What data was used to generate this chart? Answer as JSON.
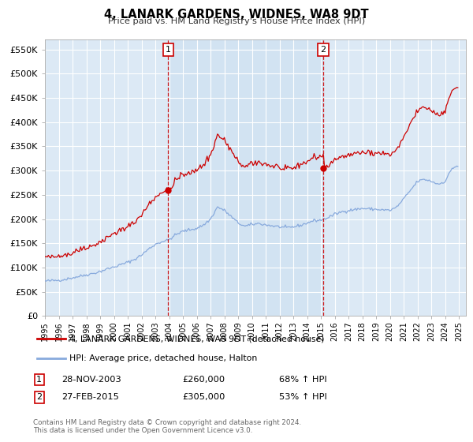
{
  "title": "4, LANARK GARDENS, WIDNES, WA8 9DT",
  "subtitle": "Price paid vs. HM Land Registry's House Price Index (HPI)",
  "xlim": [
    1995.0,
    2025.5
  ],
  "ylim": [
    0,
    570000
  ],
  "yticks": [
    0,
    50000,
    100000,
    150000,
    200000,
    250000,
    300000,
    350000,
    400000,
    450000,
    500000,
    550000
  ],
  "ytick_labels": [
    "£0",
    "£50K",
    "£100K",
    "£150K",
    "£200K",
    "£250K",
    "£300K",
    "£350K",
    "£400K",
    "£450K",
    "£500K",
    "£550K"
  ],
  "background_color": "#ffffff",
  "plot_bg_color": "#dce9f5",
  "plot_bg_between": "#cce0f0",
  "grid_color": "#ffffff",
  "t1_year": 2003.917,
  "t1_price": 260000,
  "t1_label": "1",
  "t1_date": "28-NOV-2003",
  "t1_pct": "68% ↑ HPI",
  "t2_year": 2015.167,
  "t2_price": 305000,
  "t2_label": "2",
  "t2_date": "27-FEB-2015",
  "t2_pct": "53% ↑ HPI",
  "legend_property": "4, LANARK GARDENS, WIDNES, WA8 9DT (detached house)",
  "legend_hpi": "HPI: Average price, detached house, Halton",
  "footer": "Contains HM Land Registry data © Crown copyright and database right 2024.\nThis data is licensed under the Open Government Licence v3.0.",
  "line_color_property": "#cc0000",
  "line_color_hpi": "#88aadd"
}
